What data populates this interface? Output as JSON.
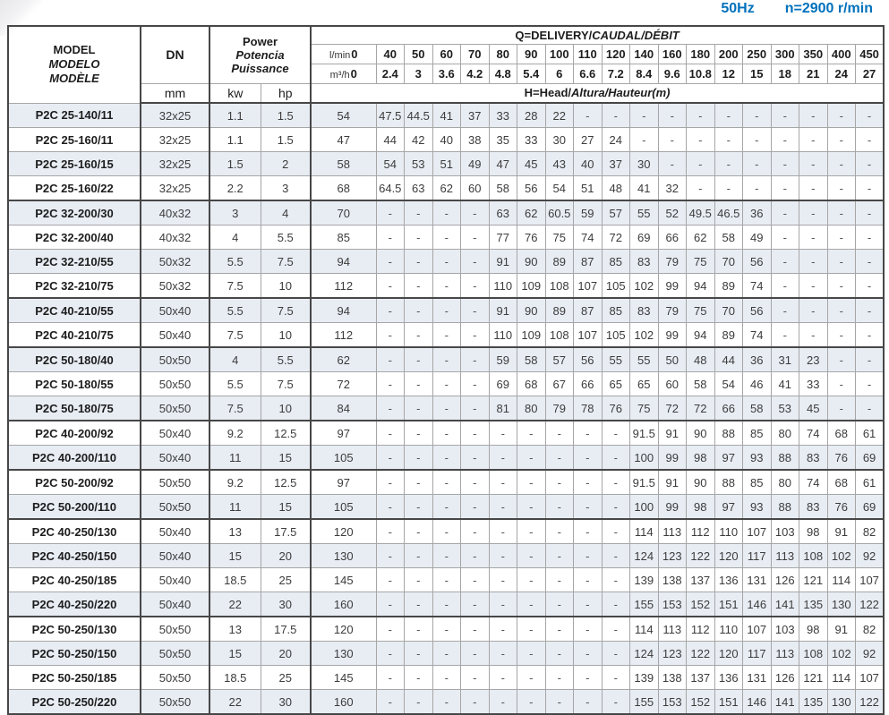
{
  "page": {
    "frequency": "50Hz",
    "speed": "n=2900 r/min",
    "accent_color": "#0071bc",
    "stripe_color": "#e8edf4"
  },
  "table": {
    "header": {
      "model_lines": [
        "MODEL",
        "MODELO",
        "MODÈLE"
      ],
      "dn_label": "DN",
      "dn_unit": "mm",
      "power_lines": [
        "Power",
        "Potencia",
        "Puissance"
      ],
      "power_unit_kw": "kw",
      "power_unit_hp": "hp",
      "q_title": {
        "plain": "Q=DELIVERY/",
        "italic": "CAUDAL/DÉBIT"
      },
      "lmin_label": "l/min",
      "m3h_label": "m³/h",
      "flow_lmin": [
        "0",
        "40",
        "50",
        "60",
        "70",
        "80",
        "90",
        "100",
        "110",
        "120",
        "140",
        "160",
        "180",
        "200",
        "250",
        "300",
        "350",
        "400",
        "450"
      ],
      "flow_m3h": [
        "0",
        "2.4",
        "3",
        "3.6",
        "4.2",
        "4.8",
        "5.4",
        "6",
        "6.6",
        "7.2",
        "8.4",
        "9.6",
        "10.8",
        "12",
        "15",
        "18",
        "21",
        "24",
        "27"
      ],
      "h_title": {
        "plain": "H=Head/",
        "italic": "Altura/Hauteur(m)"
      }
    },
    "rows": [
      {
        "model": "P2C 25-140/11",
        "dn": "32x25",
        "kw": "1.1",
        "hp": "1.5",
        "group_end": false,
        "head": [
          "54",
          "47.5",
          "44.5",
          "41",
          "37",
          "33",
          "28",
          "22",
          "-",
          "-",
          "-",
          "-",
          "-",
          "-",
          "-",
          "-",
          "-",
          "-",
          "-"
        ]
      },
      {
        "model": "P2C 25-160/11",
        "dn": "32x25",
        "kw": "1.1",
        "hp": "1.5",
        "group_end": false,
        "head": [
          "47",
          "44",
          "42",
          "40",
          "38",
          "35",
          "33",
          "30",
          "27",
          "24",
          "-",
          "-",
          "-",
          "-",
          "-",
          "-",
          "-",
          "-",
          "-"
        ]
      },
      {
        "model": "P2C 25-160/15",
        "dn": "32x25",
        "kw": "1.5",
        "hp": "2",
        "group_end": false,
        "head": [
          "58",
          "54",
          "53",
          "51",
          "49",
          "47",
          "45",
          "43",
          "40",
          "37",
          "30",
          "-",
          "-",
          "-",
          "-",
          "-",
          "-",
          "-",
          "-"
        ]
      },
      {
        "model": "P2C 25-160/22",
        "dn": "32x25",
        "kw": "2.2",
        "hp": "3",
        "group_end": true,
        "head": [
          "68",
          "64.5",
          "63",
          "62",
          "60",
          "58",
          "56",
          "54",
          "51",
          "48",
          "41",
          "32",
          "-",
          "-",
          "-",
          "-",
          "-",
          "-",
          "-"
        ]
      },
      {
        "model": "P2C 32-200/30",
        "dn": "40x32",
        "kw": "3",
        "hp": "4",
        "group_end": false,
        "head": [
          "70",
          "-",
          "-",
          "-",
          "-",
          "63",
          "62",
          "60.5",
          "59",
          "57",
          "55",
          "52",
          "49.5",
          "46.5",
          "36",
          "-",
          "-",
          "-",
          "-"
        ]
      },
      {
        "model": "P2C 32-200/40",
        "dn": "40x32",
        "kw": "4",
        "hp": "5.5",
        "group_end": false,
        "head": [
          "85",
          "-",
          "-",
          "-",
          "-",
          "77",
          "76",
          "75",
          "74",
          "72",
          "69",
          "66",
          "62",
          "58",
          "49",
          "-",
          "-",
          "-",
          "-"
        ]
      },
      {
        "model": "P2C 32-210/55",
        "dn": "50x32",
        "kw": "5.5",
        "hp": "7.5",
        "group_end": false,
        "head": [
          "94",
          "-",
          "-",
          "-",
          "-",
          "91",
          "90",
          "89",
          "87",
          "85",
          "83",
          "79",
          "75",
          "70",
          "56",
          "-",
          "-",
          "-",
          "-"
        ]
      },
      {
        "model": "P2C 32-210/75",
        "dn": "50x32",
        "kw": "7.5",
        "hp": "10",
        "group_end": true,
        "head": [
          "112",
          "-",
          "-",
          "-",
          "-",
          "110",
          "109",
          "108",
          "107",
          "105",
          "102",
          "99",
          "94",
          "89",
          "74",
          "-",
          "-",
          "-",
          "-"
        ]
      },
      {
        "model": "P2C 40-210/55",
        "dn": "50x40",
        "kw": "5.5",
        "hp": "7.5",
        "group_end": false,
        "head": [
          "94",
          "-",
          "-",
          "-",
          "-",
          "91",
          "90",
          "89",
          "87",
          "85",
          "83",
          "79",
          "75",
          "70",
          "56",
          "-",
          "-",
          "-",
          "-"
        ]
      },
      {
        "model": "P2C 40-210/75",
        "dn": "50x40",
        "kw": "7.5",
        "hp": "10",
        "group_end": true,
        "head": [
          "112",
          "-",
          "-",
          "-",
          "-",
          "110",
          "109",
          "108",
          "107",
          "105",
          "102",
          "99",
          "94",
          "89",
          "74",
          "-",
          "-",
          "-",
          "-"
        ]
      },
      {
        "model": "P2C 50-180/40",
        "dn": "50x50",
        "kw": "4",
        "hp": "5.5",
        "group_end": false,
        "head": [
          "62",
          "-",
          "-",
          "-",
          "-",
          "59",
          "58",
          "57",
          "56",
          "55",
          "55",
          "50",
          "48",
          "44",
          "36",
          "31",
          "23",
          "-",
          "-"
        ]
      },
      {
        "model": "P2C 50-180/55",
        "dn": "50x50",
        "kw": "5.5",
        "hp": "7.5",
        "group_end": false,
        "head": [
          "72",
          "-",
          "-",
          "-",
          "-",
          "69",
          "68",
          "67",
          "66",
          "65",
          "65",
          "60",
          "58",
          "54",
          "46",
          "41",
          "33",
          "-",
          "-"
        ]
      },
      {
        "model": "P2C 50-180/75",
        "dn": "50x50",
        "kw": "7.5",
        "hp": "10",
        "group_end": true,
        "head": [
          "84",
          "-",
          "-",
          "-",
          "-",
          "81",
          "80",
          "79",
          "78",
          "76",
          "75",
          "72",
          "72",
          "66",
          "58",
          "53",
          "45",
          "-",
          "-"
        ]
      },
      {
        "model": "P2C 40-200/92",
        "dn": "50x40",
        "kw": "9.2",
        "hp": "12.5",
        "group_end": false,
        "head": [
          "97",
          "-",
          "-",
          "-",
          "-",
          "-",
          "-",
          "-",
          "-",
          "-",
          "91.5",
          "91",
          "90",
          "88",
          "85",
          "80",
          "74",
          "68",
          "61"
        ]
      },
      {
        "model": "P2C 40-200/110",
        "dn": "50x40",
        "kw": "11",
        "hp": "15",
        "group_end": true,
        "head": [
          "105",
          "-",
          "-",
          "-",
          "-",
          "-",
          "-",
          "-",
          "-",
          "-",
          "100",
          "99",
          "98",
          "97",
          "93",
          "88",
          "83",
          "76",
          "69"
        ]
      },
      {
        "model": "P2C 50-200/92",
        "dn": "50x50",
        "kw": "9.2",
        "hp": "12.5",
        "group_end": false,
        "head": [
          "97",
          "-",
          "-",
          "-",
          "-",
          "-",
          "-",
          "-",
          "-",
          "-",
          "91.5",
          "91",
          "90",
          "88",
          "85",
          "80",
          "74",
          "68",
          "61"
        ]
      },
      {
        "model": "P2C 50-200/110",
        "dn": "50x50",
        "kw": "11",
        "hp": "15",
        "group_end": true,
        "head": [
          "105",
          "-",
          "-",
          "-",
          "-",
          "-",
          "-",
          "-",
          "-",
          "-",
          "100",
          "99",
          "98",
          "97",
          "93",
          "88",
          "83",
          "76",
          "69"
        ]
      },
      {
        "model": "P2C 40-250/130",
        "dn": "50x40",
        "kw": "13",
        "hp": "17.5",
        "group_end": false,
        "head": [
          "120",
          "-",
          "-",
          "-",
          "-",
          "-",
          "-",
          "-",
          "-",
          "-",
          "114",
          "113",
          "112",
          "110",
          "107",
          "103",
          "98",
          "91",
          "82"
        ]
      },
      {
        "model": "P2C 40-250/150",
        "dn": "50x40",
        "kw": "15",
        "hp": "20",
        "group_end": false,
        "head": [
          "130",
          "-",
          "-",
          "-",
          "-",
          "-",
          "-",
          "-",
          "-",
          "-",
          "124",
          "123",
          "122",
          "120",
          "117",
          "113",
          "108",
          "102",
          "92"
        ]
      },
      {
        "model": "P2C 40-250/185",
        "dn": "50x40",
        "kw": "18.5",
        "hp": "25",
        "group_end": false,
        "head": [
          "145",
          "-",
          "-",
          "-",
          "-",
          "-",
          "-",
          "-",
          "-",
          "-",
          "139",
          "138",
          "137",
          "136",
          "131",
          "126",
          "121",
          "114",
          "107"
        ]
      },
      {
        "model": "P2C 40-250/220",
        "dn": "50x40",
        "kw": "22",
        "hp": "30",
        "group_end": true,
        "head": [
          "160",
          "-",
          "-",
          "-",
          "-",
          "-",
          "-",
          "-",
          "-",
          "-",
          "155",
          "153",
          "152",
          "151",
          "146",
          "141",
          "135",
          "130",
          "122"
        ]
      },
      {
        "model": "P2C 50-250/130",
        "dn": "50x50",
        "kw": "13",
        "hp": "17.5",
        "group_end": false,
        "head": [
          "120",
          "-",
          "-",
          "-",
          "-",
          "-",
          "-",
          "-",
          "-",
          "-",
          "114",
          "113",
          "112",
          "110",
          "107",
          "103",
          "98",
          "91",
          "82"
        ]
      },
      {
        "model": "P2C 50-250/150",
        "dn": "50x50",
        "kw": "15",
        "hp": "20",
        "group_end": false,
        "head": [
          "130",
          "-",
          "-",
          "-",
          "-",
          "-",
          "-",
          "-",
          "-",
          "-",
          "124",
          "123",
          "122",
          "120",
          "117",
          "113",
          "108",
          "102",
          "92"
        ]
      },
      {
        "model": "P2C 50-250/185",
        "dn": "50x50",
        "kw": "18.5",
        "hp": "25",
        "group_end": false,
        "head": [
          "145",
          "-",
          "-",
          "-",
          "-",
          "-",
          "-",
          "-",
          "-",
          "-",
          "139",
          "138",
          "137",
          "136",
          "131",
          "126",
          "121",
          "114",
          "107"
        ]
      },
      {
        "model": "P2C 50-250/220",
        "dn": "50x50",
        "kw": "22",
        "hp": "30",
        "group_end": false,
        "head": [
          "160",
          "-",
          "-",
          "-",
          "-",
          "-",
          "-",
          "-",
          "-",
          "-",
          "155",
          "153",
          "152",
          "151",
          "146",
          "141",
          "135",
          "130",
          "122"
        ]
      }
    ]
  }
}
